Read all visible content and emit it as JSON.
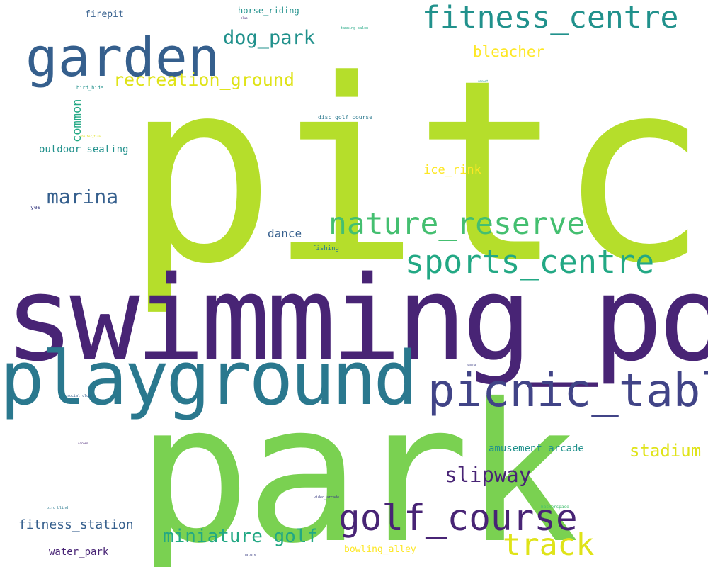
{
  "palette": {
    "dark_purple": "#482475",
    "indigo": "#414487",
    "blue": "#355f8d",
    "steel_blue": "#2a788e",
    "teal": "#21918c",
    "sea_green": "#22a884",
    "green": "#44bf70",
    "light_green": "#7ad151",
    "lime": "#b5de2b",
    "yellow": "#fde725",
    "yellow_green": "#dfe318"
  },
  "words": {
    "pitch": "pitch",
    "swimming_pool": "swimming_pool",
    "park": "park",
    "playground": "playground",
    "garden": "garden",
    "picnic_table": "picnic_table",
    "fitness_centre": "fitness_centre",
    "sports_centre": "sports_centre",
    "nature_reserve": "nature_reserve",
    "golf_course": "golf_course",
    "track": "track",
    "slipway": "slipway",
    "recreation_ground": "recreation_ground",
    "dog_park": "dog_park",
    "marina": "marina",
    "miniature_golf": "miniature_golf",
    "stadium": "stadium",
    "bleacher": "bleacher",
    "fitness_station": "fitness_station",
    "ice_rink": "ice_rink",
    "common": "common",
    "outdoor_seating": "outdoor_seating",
    "amusement_arcade": "amusement_arcade",
    "dance": "dance",
    "water_park": "water_park",
    "bowling_alley": "bowling_alley",
    "firepit": "firepit",
    "horse_riding": "horse_riding",
    "fishing": "fishing",
    "disc_golf_course": "disc_golf_course",
    "bird_hide": "bird_hide",
    "yes": "yes",
    "tanning_salon": "tanning_salon",
    "social_club": "social_club",
    "video_arcade": "video_arcade",
    "bird_blind": "bird_blind",
    "hackerspace": "hackerspace",
    "nature": "nature",
    "resort": "resort",
    "sauna": "sauna",
    "club": "club",
    "shelter_fire": "shelter_fire",
    "screen": "screen"
  }
}
